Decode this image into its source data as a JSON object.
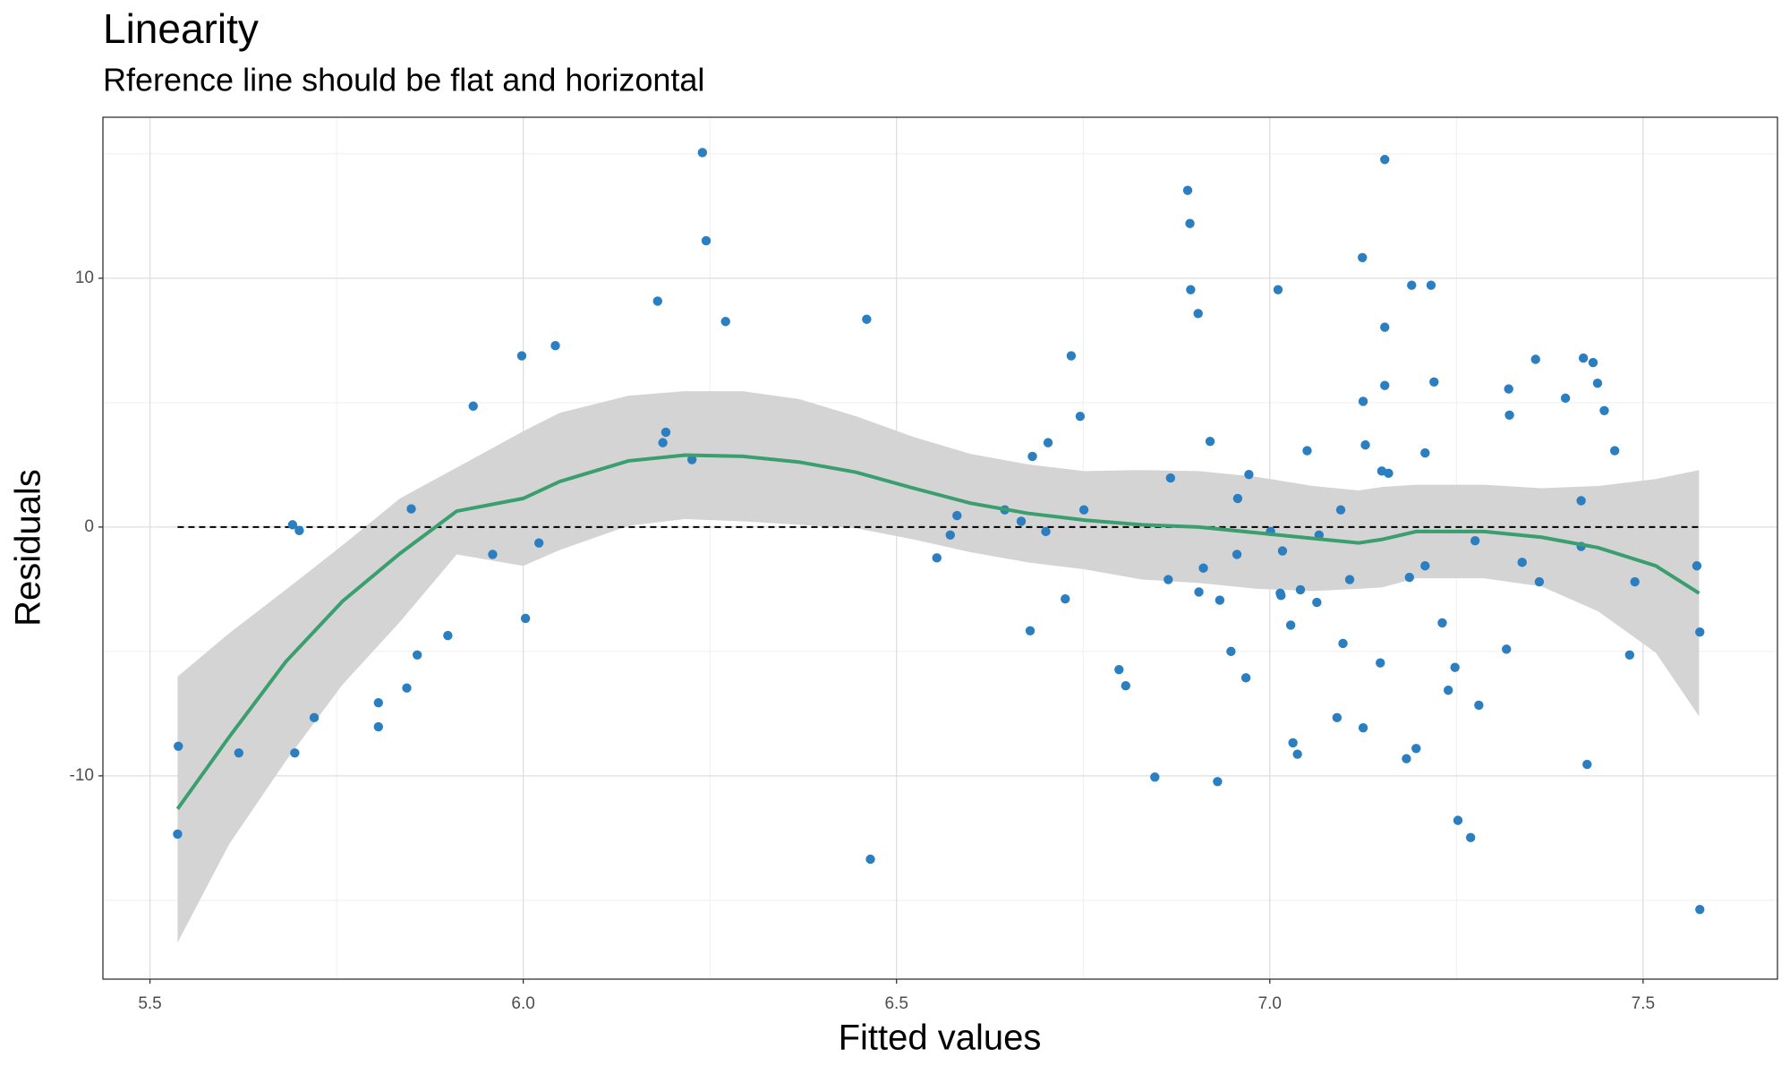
{
  "chart_data": {
    "type": "scatter",
    "title": "Linearity",
    "subtitle": "Rference line should be flat and horizontal",
    "x_label": "Fitted values",
    "y_label": "Residuals",
    "xlim": [
      5.437,
      7.68
    ],
    "ylim": [
      -18.17,
      16.47
    ],
    "xticks": [
      5.5,
      {
        "value": 6,
        "label": "6.0"
      },
      6.5,
      {
        "value": 7,
        "label": "7.0"
      },
      7.5
    ],
    "yticks": [
      -10,
      0,
      10
    ],
    "x_minor_ticks": [
      5.75,
      6.25,
      6.75,
      7.25
    ],
    "y_minor_ticks": [
      -15,
      -5,
      5,
      15
    ],
    "grid": true,
    "points": {
      "color": "#2b7fc1",
      "x": [
        5.538,
        5.537,
        5.619,
        5.691,
        5.7,
        5.694,
        5.72,
        5.806,
        5.806,
        5.844,
        5.85,
        5.858,
        5.899,
        5.933,
        5.959,
        5.998,
        6.003,
        6.021,
        6.043,
        6.18,
        6.187,
        6.191,
        6.226,
        6.24,
        6.245,
        6.271,
        6.46,
        6.465,
        6.554,
        6.572,
        6.581,
        6.645,
        6.667,
        6.679,
        6.682,
        6.7,
        6.703,
        6.726,
        6.734,
        6.746,
        6.751,
        6.798,
        6.807,
        6.846,
        6.864,
        6.867,
        6.89,
        6.893,
        6.894,
        6.904,
        6.905,
        6.911,
        6.92,
        6.93,
        6.933,
        6.948,
        6.956,
        6.957,
        6.968,
        6.972,
        7.001,
        7.011,
        7.014,
        7.015,
        7.017,
        7.028,
        7.031,
        7.037,
        7.041,
        7.05,
        7.063,
        7.066,
        7.09,
        7.095,
        7.098,
        7.107,
        7.124,
        7.125,
        7.125,
        7.128,
        7.148,
        7.15,
        7.154,
        7.154,
        7.154,
        7.159,
        7.183,
        7.187,
        7.19,
        7.196,
        7.208,
        7.208,
        7.216,
        7.22,
        7.231,
        7.239,
        7.248,
        7.252,
        7.269,
        7.275,
        7.28,
        7.317,
        7.32,
        7.321,
        7.338,
        7.356,
        7.361,
        7.396,
        7.417,
        7.417,
        7.42,
        7.425,
        7.433,
        7.439,
        7.448,
        7.462,
        7.482,
        7.489,
        7.572,
        7.576,
        7.576
      ],
      "y": [
        -8.81,
        -12.34,
        -9.08,
        0.09,
        -0.14,
        -9.08,
        -7.66,
        -7.06,
        -8.03,
        -6.47,
        0.73,
        -5.14,
        -4.36,
        4.86,
        -1.1,
        6.88,
        -3.67,
        -0.64,
        7.29,
        9.08,
        3.39,
        3.81,
        2.71,
        15.05,
        11.51,
        8.26,
        8.35,
        -13.35,
        -1.24,
        -0.32,
        0.46,
        0.69,
        0.23,
        -4.17,
        2.84,
        -0.18,
        3.39,
        -2.89,
        6.88,
        4.45,
        0.69,
        -5.73,
        -6.38,
        -10.05,
        -2.11,
        1.97,
        13.53,
        12.2,
        9.54,
        8.58,
        -2.61,
        -1.65,
        3.44,
        -10.23,
        -2.94,
        -5.0,
        -1.1,
        1.15,
        -6.06,
        2.11,
        -0.18,
        9.54,
        -2.66,
        -2.75,
        -0.96,
        -3.94,
        -8.67,
        -9.13,
        -2.52,
        3.07,
        -3.03,
        -0.32,
        -7.66,
        0.69,
        -4.68,
        -2.11,
        10.83,
        -8.07,
        5.05,
        3.3,
        -5.46,
        2.25,
        14.77,
        8.03,
        5.69,
        2.16,
        -9.31,
        -2.02,
        9.72,
        -8.9,
        2.98,
        -1.56,
        9.72,
        5.83,
        -3.85,
        -6.56,
        -5.64,
        -11.79,
        -12.48,
        -0.55,
        -7.16,
        -4.91,
        5.55,
        4.5,
        -1.42,
        6.74,
        -2.2,
        5.18,
        1.06,
        -0.78,
        6.79,
        -9.54,
        6.61,
        5.78,
        4.68,
        3.07,
        -5.14,
        -2.2,
        -1.56,
        -4.22,
        -15.37
      ]
    },
    "smooth": {
      "color": "#3a9e6e",
      "band_color": "#d4d4d4",
      "x": [
        5.537,
        5.606,
        5.682,
        5.758,
        5.835,
        5.911,
        6.0,
        6.049,
        6.141,
        6.217,
        6.294,
        6.37,
        6.446,
        6.523,
        6.599,
        6.676,
        6.752,
        6.829,
        6.905,
        6.982,
        7.058,
        7.119,
        7.15,
        7.196,
        7.287,
        7.364,
        7.44,
        7.517,
        7.575
      ],
      "y": [
        -11.33,
        -8.44,
        -5.41,
        -2.98,
        -1.06,
        0.64,
        1.15,
        1.83,
        2.66,
        2.89,
        2.84,
        2.61,
        2.2,
        1.56,
        0.96,
        0.55,
        0.28,
        0.09,
        0,
        -0.23,
        -0.46,
        -0.64,
        -0.5,
        -0.18,
        -0.18,
        -0.41,
        -0.83,
        -1.56,
        -2.66
      ],
      "upper": [
        -6.01,
        -4.27,
        -2.52,
        -0.73,
        1.15,
        2.39,
        3.85,
        4.59,
        5.28,
        5.46,
        5.46,
        5.14,
        4.45,
        3.62,
        2.94,
        2.52,
        2.25,
        2.29,
        2.25,
        2.02,
        1.65,
        1.47,
        1.61,
        1.7,
        1.7,
        1.56,
        1.65,
        1.93,
        2.29
      ],
      "lower": [
        -16.7,
        -12.75,
        -9.4,
        -6.33,
        -3.81,
        -1.1,
        -1.56,
        -0.92,
        0.05,
        0.32,
        0.23,
        0.09,
        -0.05,
        -0.5,
        -1.01,
        -1.42,
        -1.7,
        -2.11,
        -2.25,
        -2.48,
        -2.57,
        -2.48,
        -2.43,
        -2.06,
        -2.06,
        -2.39,
        -3.39,
        -5.05,
        -7.61
      ]
    },
    "reference_line": {
      "y": 0,
      "x": [
        5.537,
        7.576
      ],
      "color": "#000000"
    }
  }
}
